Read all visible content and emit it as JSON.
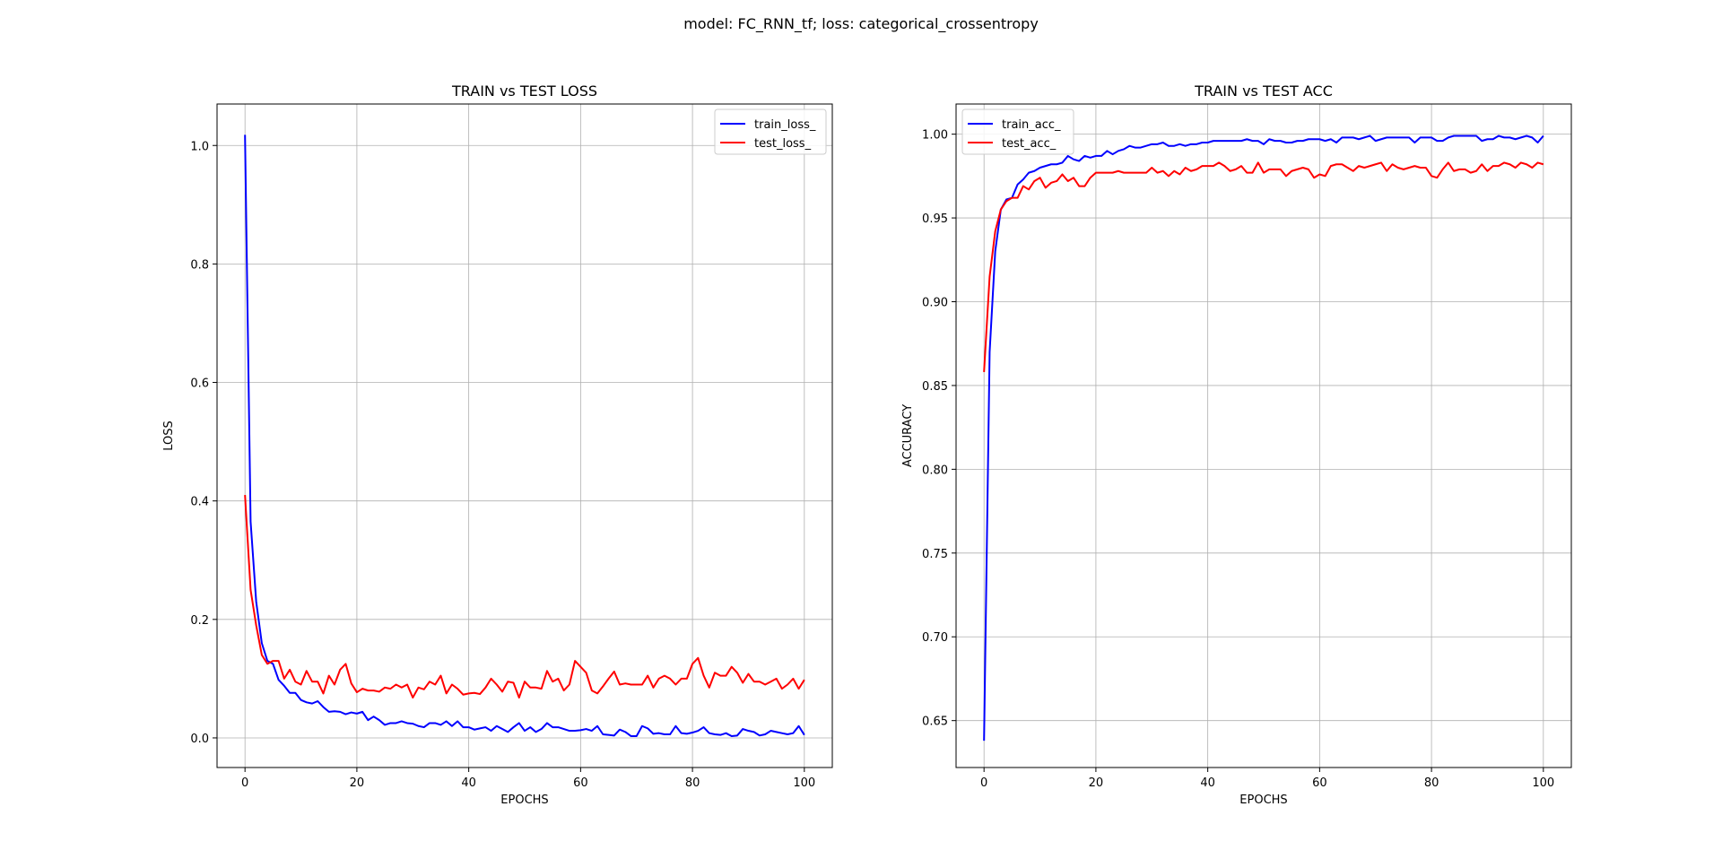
{
  "suptitle": "model: FC_RNN_tf; loss: categorical_crossentropy",
  "chart_data": [
    {
      "type": "line",
      "title": "TRAIN vs TEST LOSS",
      "xlabel": "EPOCHS",
      "ylabel": "LOSS",
      "xlim": [
        -5,
        105
      ],
      "ylim": [
        -0.05,
        1.07
      ],
      "xticks": [
        0,
        20,
        40,
        60,
        80,
        100
      ],
      "yticks": [
        0.0,
        0.2,
        0.4,
        0.6,
        0.8,
        1.0
      ],
      "ytick_decimals": 1,
      "grid": true,
      "legend": "top-right",
      "series": [
        {
          "name": "train_loss_",
          "color": "#0000ff",
          "values": [
            1.018,
            0.365,
            0.23,
            0.16,
            0.13,
            0.125,
            0.098,
            0.088,
            0.076,
            0.076,
            0.064,
            0.06,
            0.058,
            0.062,
            0.052,
            0.044,
            0.045,
            0.044,
            0.04,
            0.043,
            0.041,
            0.044,
            0.03,
            0.036,
            0.03,
            0.022,
            0.025,
            0.025,
            0.028,
            0.025,
            0.024,
            0.02,
            0.018,
            0.025,
            0.025,
            0.022,
            0.028,
            0.02,
            0.028,
            0.018,
            0.018,
            0.014,
            0.016,
            0.018,
            0.012,
            0.02,
            0.015,
            0.01,
            0.018,
            0.025,
            0.012,
            0.018,
            0.01,
            0.015,
            0.025,
            0.018,
            0.018,
            0.015,
            0.012,
            0.012,
            0.013,
            0.015,
            0.012,
            0.02,
            0.006,
            0.005,
            0.004,
            0.014,
            0.01,
            0.003,
            0.003,
            0.02,
            0.016,
            0.007,
            0.008,
            0.006,
            0.006,
            0.02,
            0.008,
            0.007,
            0.009,
            0.012,
            0.018,
            0.008,
            0.006,
            0.005,
            0.008,
            0.003,
            0.004,
            0.015,
            0.012,
            0.01,
            0.004,
            0.006,
            0.012,
            0.01,
            0.008,
            0.006,
            0.008,
            0.02,
            0.005
          ]
        },
        {
          "name": "test_loss_",
          "color": "#ff0000",
          "values": [
            0.41,
            0.25,
            0.19,
            0.14,
            0.125,
            0.13,
            0.13,
            0.1,
            0.115,
            0.095,
            0.09,
            0.113,
            0.095,
            0.095,
            0.075,
            0.105,
            0.09,
            0.115,
            0.125,
            0.092,
            0.077,
            0.083,
            0.08,
            0.08,
            0.078,
            0.085,
            0.083,
            0.09,
            0.085,
            0.09,
            0.068,
            0.085,
            0.082,
            0.095,
            0.09,
            0.105,
            0.075,
            0.09,
            0.083,
            0.073,
            0.075,
            0.076,
            0.074,
            0.085,
            0.1,
            0.09,
            0.078,
            0.095,
            0.093,
            0.068,
            0.095,
            0.085,
            0.085,
            0.083,
            0.113,
            0.095,
            0.1,
            0.08,
            0.09,
            0.13,
            0.12,
            0.11,
            0.08,
            0.075,
            0.087,
            0.1,
            0.112,
            0.09,
            0.092,
            0.09,
            0.09,
            0.09,
            0.105,
            0.085,
            0.1,
            0.105,
            0.1,
            0.09,
            0.1,
            0.1,
            0.125,
            0.135,
            0.105,
            0.085,
            0.11,
            0.105,
            0.105,
            0.12,
            0.11,
            0.093,
            0.108,
            0.095,
            0.095,
            0.09,
            0.095,
            0.1,
            0.083,
            0.09,
            0.1,
            0.083,
            0.098
          ]
        }
      ]
    },
    {
      "type": "line",
      "title": "TRAIN vs TEST ACC",
      "xlabel": "EPOCHS",
      "ylabel": "ACCURACY",
      "xlim": [
        -5,
        105
      ],
      "ylim": [
        0.622,
        1.018
      ],
      "xticks": [
        0,
        20,
        40,
        60,
        80,
        100
      ],
      "yticks": [
        0.65,
        0.7,
        0.75,
        0.8,
        0.85,
        0.9,
        0.95,
        1.0
      ],
      "ytick_decimals": 2,
      "grid": true,
      "legend": "top-left",
      "series": [
        {
          "name": "train_acc_",
          "color": "#0000ff",
          "values": [
            0.638,
            0.87,
            0.93,
            0.955,
            0.961,
            0.962,
            0.97,
            0.973,
            0.977,
            0.978,
            0.98,
            0.981,
            0.982,
            0.982,
            0.983,
            0.987,
            0.985,
            0.984,
            0.987,
            0.986,
            0.987,
            0.987,
            0.99,
            0.988,
            0.99,
            0.991,
            0.993,
            0.992,
            0.992,
            0.993,
            0.994,
            0.994,
            0.995,
            0.993,
            0.993,
            0.994,
            0.993,
            0.994,
            0.994,
            0.995,
            0.995,
            0.996,
            0.996,
            0.996,
            0.996,
            0.996,
            0.996,
            0.997,
            0.996,
            0.996,
            0.994,
            0.997,
            0.996,
            0.996,
            0.995,
            0.995,
            0.996,
            0.996,
            0.997,
            0.997,
            0.997,
            0.996,
            0.997,
            0.995,
            0.998,
            0.998,
            0.998,
            0.997,
            0.998,
            0.999,
            0.996,
            0.997,
            0.998,
            0.998,
            0.998,
            0.998,
            0.998,
            0.995,
            0.998,
            0.998,
            0.998,
            0.996,
            0.996,
            0.998,
            0.999,
            0.999,
            0.999,
            0.999,
            0.999,
            0.996,
            0.997,
            0.997,
            0.999,
            0.998,
            0.998,
            0.997,
            0.998,
            0.999,
            0.998,
            0.995,
            0.999
          ]
        },
        {
          "name": "test_acc_",
          "color": "#ff0000",
          "values": [
            0.858,
            0.915,
            0.942,
            0.955,
            0.96,
            0.962,
            0.962,
            0.969,
            0.967,
            0.972,
            0.974,
            0.968,
            0.971,
            0.972,
            0.976,
            0.972,
            0.974,
            0.969,
            0.969,
            0.974,
            0.977,
            0.977,
            0.977,
            0.977,
            0.978,
            0.977,
            0.977,
            0.977,
            0.977,
            0.977,
            0.98,
            0.977,
            0.978,
            0.975,
            0.978,
            0.976,
            0.98,
            0.978,
            0.979,
            0.981,
            0.981,
            0.981,
            0.983,
            0.981,
            0.978,
            0.979,
            0.981,
            0.977,
            0.977,
            0.983,
            0.977,
            0.979,
            0.979,
            0.979,
            0.975,
            0.978,
            0.979,
            0.98,
            0.979,
            0.974,
            0.976,
            0.975,
            0.981,
            0.982,
            0.982,
            0.98,
            0.978,
            0.981,
            0.98,
            0.981,
            0.982,
            0.983,
            0.978,
            0.982,
            0.98,
            0.979,
            0.98,
            0.981,
            0.98,
            0.98,
            0.975,
            0.974,
            0.979,
            0.983,
            0.978,
            0.979,
            0.979,
            0.977,
            0.978,
            0.982,
            0.978,
            0.981,
            0.981,
            0.983,
            0.982,
            0.98,
            0.983,
            0.982,
            0.98,
            0.983,
            0.982
          ]
        }
      ]
    }
  ]
}
